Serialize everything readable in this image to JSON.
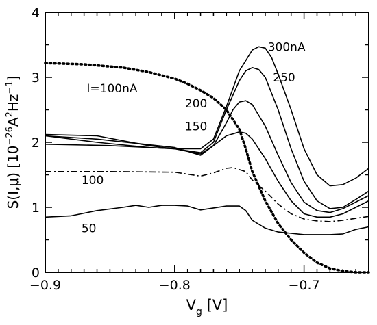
{
  "chart_data": {
    "type": "line",
    "xlabel": {
      "base": "V",
      "sub": "g",
      "unit": " [V]"
    },
    "ylabel": {
      "prefix": "S(I,μ) [10",
      "exp1": "−26",
      "mid1": "A",
      "exp2": "2",
      "mid2": "Hz",
      "exp3": "−1",
      "suffix": "]"
    },
    "xlim": [
      -0.9,
      -0.65
    ],
    "ylim": [
      0,
      4
    ],
    "xticks": [
      {
        "value": -0.9,
        "label": "−0.9"
      },
      {
        "value": -0.8,
        "label": "−0.8"
      },
      {
        "value": -0.7,
        "label": "−0.7"
      }
    ],
    "yticks": [
      {
        "value": 0,
        "label": "0"
      },
      {
        "value": 1,
        "label": "1"
      },
      {
        "value": 2,
        "label": "2"
      },
      {
        "value": 3,
        "label": "3"
      },
      {
        "value": 4,
        "label": "4"
      }
    ],
    "series": [
      {
        "name": "50",
        "style": "solid",
        "color": "#000000",
        "x": [
          -0.9,
          -0.88,
          -0.86,
          -0.84,
          -0.83,
          -0.82,
          -0.81,
          -0.8,
          -0.79,
          -0.78,
          -0.77,
          -0.76,
          -0.75,
          -0.745,
          -0.74,
          -0.73,
          -0.72,
          -0.71,
          -0.7,
          -0.69,
          -0.68,
          -0.67,
          -0.66,
          -0.65
        ],
        "y": [
          0.85,
          0.87,
          0.95,
          1.0,
          1.03,
          1.0,
          1.03,
          1.03,
          1.02,
          0.96,
          0.99,
          1.02,
          1.02,
          0.95,
          0.8,
          0.68,
          0.62,
          0.6,
          0.58,
          0.58,
          0.58,
          0.59,
          0.66,
          0.7
        ]
      },
      {
        "name": "100",
        "style": "dashdot",
        "color": "#000000",
        "x": [
          -0.9,
          -0.85,
          -0.8,
          -0.78,
          -0.77,
          -0.76,
          -0.755,
          -0.75,
          -0.745,
          -0.74,
          -0.73,
          -0.72,
          -0.71,
          -0.7,
          -0.69,
          -0.68,
          -0.67,
          -0.66,
          -0.65
        ],
        "y": [
          1.55,
          1.55,
          1.54,
          1.48,
          1.53,
          1.6,
          1.61,
          1.58,
          1.55,
          1.42,
          1.25,
          1.05,
          0.9,
          0.82,
          0.79,
          0.78,
          0.8,
          0.83,
          0.86
        ]
      },
      {
        "name": "150",
        "style": "solid",
        "color": "#000000",
        "x": [
          -0.9,
          -0.85,
          -0.8,
          -0.78,
          -0.77,
          -0.76,
          -0.75,
          -0.745,
          -0.74,
          -0.73,
          -0.72,
          -0.71,
          -0.7,
          -0.69,
          -0.68,
          -0.67,
          -0.66,
          -0.65
        ],
        "y": [
          1.97,
          1.95,
          1.9,
          1.82,
          1.95,
          2.1,
          2.16,
          2.14,
          2.05,
          1.75,
          1.4,
          1.1,
          0.9,
          0.85,
          0.85,
          0.9,
          1.0,
          1.1
        ]
      },
      {
        "name": "200",
        "style": "solid",
        "color": "#000000",
        "x": [
          -0.9,
          -0.86,
          -0.8,
          -0.78,
          -0.77,
          -0.76,
          -0.755,
          -0.75,
          -0.745,
          -0.74,
          -0.73,
          -0.72,
          -0.71,
          -0.7,
          -0.69,
          -0.68,
          -0.67,
          -0.66,
          -0.65
        ],
        "y": [
          2.1,
          2.05,
          1.92,
          1.8,
          1.95,
          2.3,
          2.5,
          2.62,
          2.64,
          2.58,
          2.25,
          1.8,
          1.38,
          1.08,
          0.95,
          0.92,
          0.98,
          1.08,
          1.18
        ]
      },
      {
        "name": "250",
        "style": "solid",
        "color": "#000000",
        "x": [
          -0.9,
          -0.86,
          -0.82,
          -0.8,
          -0.78,
          -0.77,
          -0.76,
          -0.75,
          -0.745,
          -0.74,
          -0.735,
          -0.73,
          -0.72,
          -0.71,
          -0.7,
          -0.69,
          -0.68,
          -0.67,
          -0.66,
          -0.65
        ],
        "y": [
          2.1,
          2.0,
          1.92,
          1.9,
          1.84,
          2.0,
          2.5,
          2.95,
          3.1,
          3.15,
          3.12,
          3.0,
          2.5,
          1.9,
          1.4,
          1.1,
          0.98,
          1.0,
          1.12,
          1.25
        ]
      },
      {
        "name": "300nA",
        "style": "solid",
        "color": "#000000",
        "x": [
          -0.9,
          -0.86,
          -0.82,
          -0.8,
          -0.78,
          -0.77,
          -0.76,
          -0.75,
          -0.74,
          -0.735,
          -0.73,
          -0.725,
          -0.72,
          -0.71,
          -0.7,
          -0.69,
          -0.68,
          -0.67,
          -0.66,
          -0.65
        ],
        "y": [
          2.12,
          2.1,
          1.95,
          1.9,
          1.9,
          2.05,
          2.55,
          3.1,
          3.42,
          3.47,
          3.45,
          3.3,
          3.05,
          2.5,
          1.9,
          1.5,
          1.33,
          1.35,
          1.45,
          1.6
        ]
      },
      {
        "name": "I=100nA",
        "style": "dotted",
        "color": "#000000",
        "x": [
          -0.9,
          -0.87,
          -0.84,
          -0.82,
          -0.8,
          -0.79,
          -0.78,
          -0.77,
          -0.76,
          -0.75,
          -0.745,
          -0.74,
          -0.73,
          -0.72,
          -0.71,
          -0.7,
          -0.69,
          -0.68,
          -0.67,
          -0.66,
          -0.65
        ],
        "y": [
          3.22,
          3.2,
          3.15,
          3.08,
          2.98,
          2.9,
          2.8,
          2.68,
          2.5,
          2.2,
          1.9,
          1.55,
          1.1,
          0.75,
          0.5,
          0.3,
          0.15,
          0.06,
          0.02,
          0.0,
          0.0
        ]
      }
    ],
    "annotations": [
      {
        "text": "300nA",
        "x": -0.728,
        "y": 3.47
      },
      {
        "text": "250",
        "x": -0.724,
        "y": 3.0
      },
      {
        "text": "200",
        "x": -0.792,
        "y": 2.6
      },
      {
        "text": "150",
        "x": -0.792,
        "y": 2.25
      },
      {
        "text": "100",
        "x": -0.872,
        "y": 1.42
      },
      {
        "text": "50",
        "x": -0.872,
        "y": 0.68
      },
      {
        "text": "I=100nA",
        "x": -0.868,
        "y": 2.83
      }
    ]
  }
}
